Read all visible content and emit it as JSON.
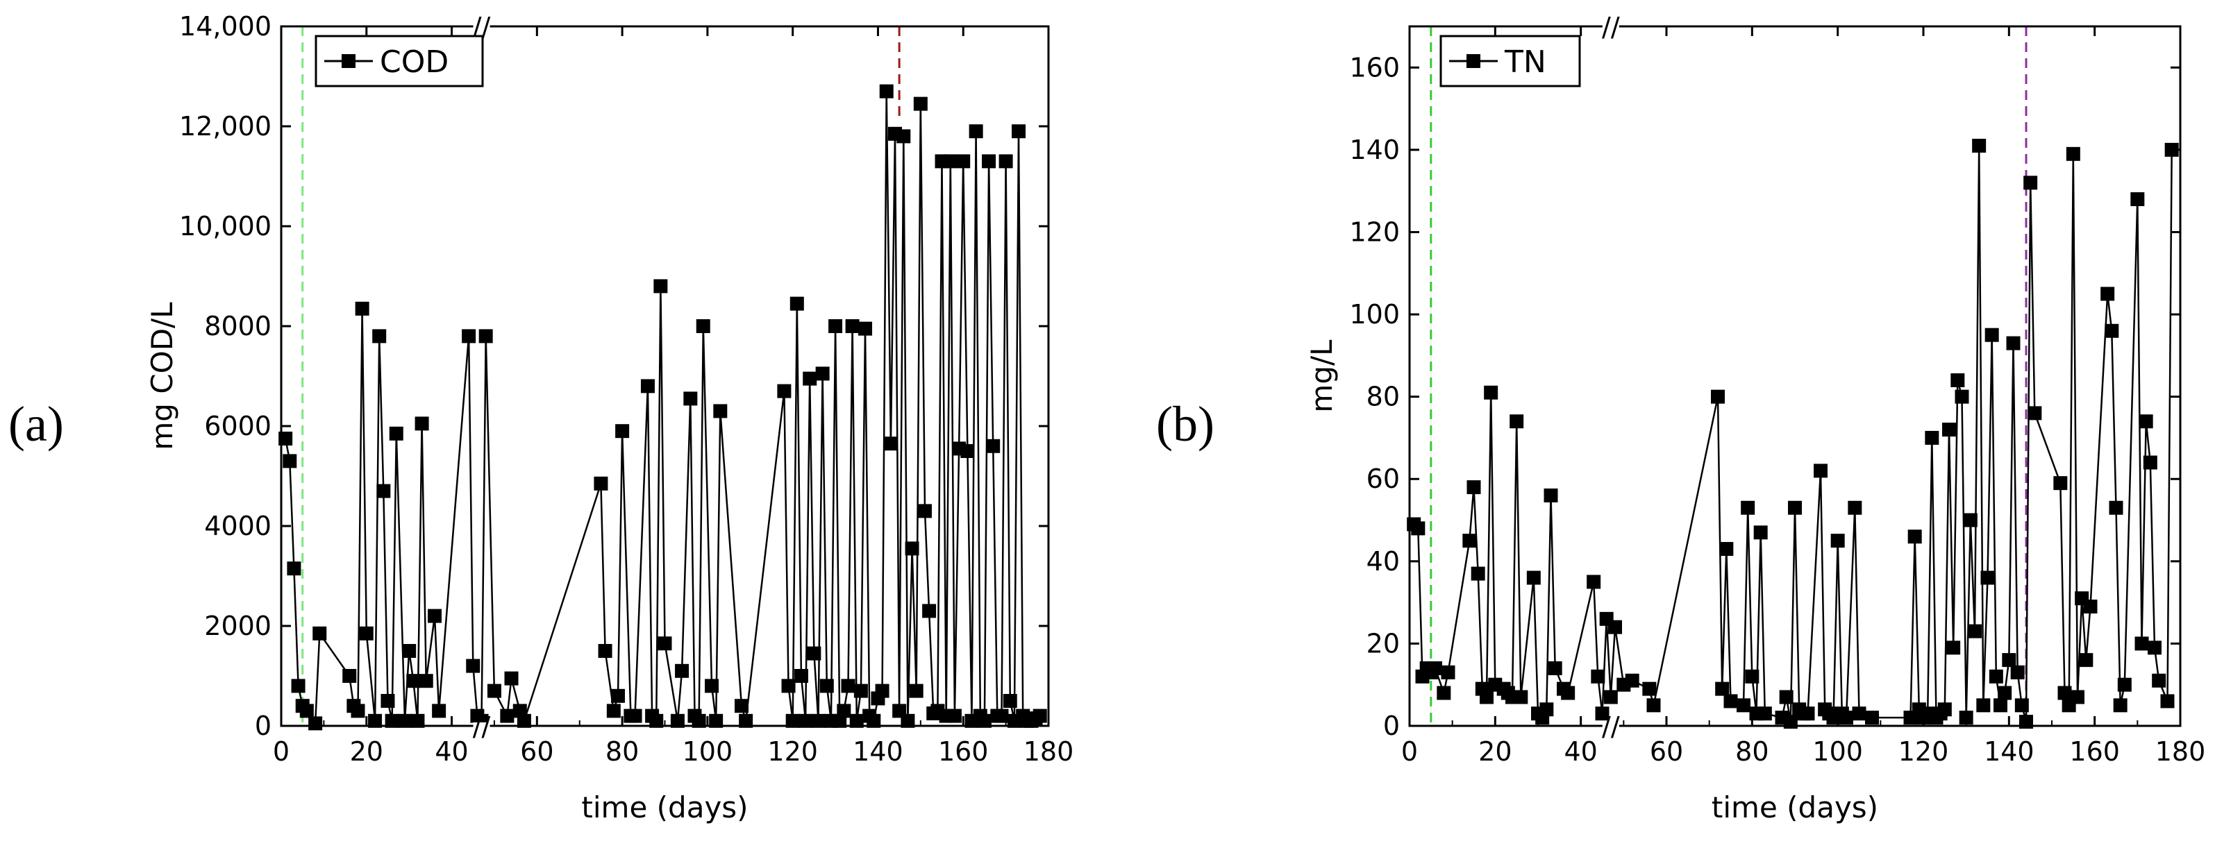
{
  "chart_data": [
    {
      "panel_label": "(a)",
      "type": "line",
      "marker": "square",
      "color": "#000000",
      "xlabel": "time (days)",
      "ylabel": "mg COD/L",
      "xlim": [
        0,
        180
      ],
      "ylim": [
        0,
        14000
      ],
      "xticks": [
        0,
        20,
        40,
        60,
        80,
        100,
        120,
        140,
        160,
        180
      ],
      "xtick_labels": [
        "0",
        "20",
        "40",
        "60",
        "80",
        "100",
        "120",
        "140",
        "160",
        "180"
      ],
      "yticks": [
        0,
        2000,
        4000,
        6000,
        8000,
        10000,
        12000,
        14000
      ],
      "ytick_labels": [
        "0",
        "2000",
        "4000",
        "6000",
        "8000",
        "10,000",
        "12,000",
        "14,000"
      ],
      "axis_break": {
        "x_at": 47,
        "label": "//"
      },
      "vlines": [
        {
          "x": 5,
          "color": "#7ee87e",
          "style": "dashed",
          "span": "full"
        },
        {
          "x": 145,
          "color": "#a01818",
          "style": "dashed",
          "span": "top"
        }
      ],
      "legend": {
        "position": "top-left",
        "entries": [
          "COD"
        ]
      },
      "series": [
        {
          "name": "COD",
          "x": [
            1,
            2,
            3,
            4,
            5,
            6,
            8,
            9,
            16,
            17,
            18,
            19,
            20,
            22,
            23,
            24,
            25,
            26,
            27,
            29,
            30,
            31,
            32,
            33,
            34,
            36,
            37,
            44,
            45,
            46,
            47,
            48,
            50,
            53,
            54,
            56,
            57,
            75,
            76,
            78,
            79,
            80,
            82,
            83,
            86,
            87,
            88,
            89,
            90,
            93,
            94,
            96,
            97,
            98,
            99,
            101,
            102,
            103,
            108,
            109,
            118,
            119,
            120,
            121,
            122,
            123,
            124,
            125,
            126,
            127,
            128,
            129,
            130,
            131,
            132,
            133,
            134,
            135,
            136,
            137,
            138,
            139,
            140,
            141,
            142,
            143,
            144,
            145,
            146,
            147,
            148,
            149,
            150,
            151,
            152,
            153,
            154,
            155,
            156,
            157,
            158,
            159,
            160,
            161,
            162,
            163,
            164,
            165,
            166,
            167,
            168,
            169,
            170,
            171,
            172,
            173,
            174,
            175,
            176,
            177,
            178
          ],
          "values": [
            5750,
            5300,
            3150,
            800,
            400,
            300,
            50,
            1850,
            1000,
            400,
            300,
            8350,
            1850,
            100,
            7800,
            4700,
            500,
            100,
            5850,
            100,
            1500,
            900,
            100,
            6050,
            900,
            2200,
            300,
            7800,
            1200,
            200,
            100,
            7800,
            700,
            200,
            950,
            300,
            100,
            4850,
            1500,
            300,
            600,
            5900,
            200,
            200,
            6800,
            200,
            100,
            8800,
            1650,
            100,
            1100,
            6550,
            200,
            100,
            8000,
            800,
            100,
            6300,
            400,
            100,
            6700,
            800,
            100,
            8450,
            1000,
            100,
            6950,
            1450,
            100,
            7050,
            800,
            100,
            8000,
            100,
            300,
            800,
            8000,
            100,
            700,
            7950,
            200,
            100,
            550,
            700,
            12700,
            5650,
            11850,
            300,
            11800,
            100,
            3550,
            700,
            12450,
            4300,
            2300,
            250,
            300,
            11300,
            200,
            11300,
            200,
            5550,
            11300,
            5500,
            100,
            11900,
            200,
            100,
            11300,
            5600,
            200,
            200,
            11300,
            500,
            100,
            11900,
            200,
            100,
            100,
            150,
            200
          ]
        }
      ]
    },
    {
      "panel_label": "(b)",
      "type": "line",
      "marker": "square",
      "color": "#000000",
      "xlabel": "time (days)",
      "ylabel": "mg/L",
      "xlim": [
        0,
        180
      ],
      "ylim": [
        0,
        170
      ],
      "xticks": [
        0,
        20,
        40,
        60,
        80,
        100,
        120,
        140,
        160,
        180
      ],
      "xtick_labels": [
        "0",
        "20",
        "40",
        "60",
        "80",
        "100",
        "120",
        "140",
        "160",
        "180"
      ],
      "yticks": [
        0,
        20,
        40,
        60,
        80,
        100,
        120,
        140,
        160
      ],
      "ytick_labels": [
        "0",
        "20",
        "40",
        "60",
        "80",
        "100",
        "120",
        "140",
        "160"
      ],
      "axis_break": {
        "x_at": 47,
        "label": "//"
      },
      "vlines": [
        {
          "x": 5,
          "color": "#33cc33",
          "style": "dashed",
          "span": "full"
        },
        {
          "x": 144,
          "color": "#8b2fa0",
          "style": "dashed",
          "span": "full"
        }
      ],
      "legend": {
        "position": "top-left",
        "entries": [
          "TN"
        ]
      },
      "series": [
        {
          "name": "TN",
          "x": [
            1,
            2,
            3,
            4,
            5,
            6,
            8,
            9,
            14,
            15,
            16,
            17,
            18,
            19,
            20,
            22,
            23,
            24,
            25,
            26,
            29,
            30,
            31,
            32,
            33,
            34,
            36,
            37,
            43,
            44,
            45,
            46,
            47,
            48,
            50,
            52,
            56,
            57,
            72,
            73,
            74,
            75,
            78,
            79,
            80,
            81,
            82,
            83,
            87,
            88,
            89,
            90,
            91,
            92,
            93,
            96,
            97,
            98,
            99,
            100,
            101,
            102,
            104,
            105,
            108,
            117,
            118,
            119,
            120,
            121,
            122,
            123,
            124,
            125,
            126,
            127,
            128,
            129,
            130,
            131,
            132,
            133,
            134,
            135,
            136,
            137,
            138,
            139,
            140,
            141,
            142,
            143,
            144,
            145,
            146,
            152,
            153,
            154,
            155,
            156,
            157,
            158,
            159,
            163,
            164,
            165,
            166,
            167,
            170,
            171,
            172,
            173,
            174,
            175,
            177,
            178
          ],
          "values": [
            49,
            48,
            12,
            14,
            13,
            14,
            8,
            13,
            45,
            58,
            37,
            9,
            7,
            81,
            10,
            9,
            8,
            7,
            74,
            7,
            36,
            3,
            2,
            4,
            56,
            14,
            9,
            8,
            35,
            12,
            3,
            26,
            7,
            24,
            10,
            11,
            9,
            5,
            80,
            9,
            43,
            6,
            5,
            53,
            12,
            3,
            47,
            3,
            2,
            7,
            1,
            53,
            4,
            3,
            3,
            62,
            4,
            3,
            2,
            45,
            3,
            2,
            53,
            3,
            2,
            2,
            46,
            4,
            2,
            3,
            70,
            2,
            3,
            4,
            72,
            19,
            84,
            80,
            2,
            50,
            23,
            141,
            5,
            36,
            95,
            12,
            5,
            8,
            16,
            93,
            13,
            5,
            1,
            132,
            76,
            59,
            8,
            5,
            139,
            7,
            31,
            16,
            29,
            105,
            96,
            53,
            5,
            10,
            128,
            20,
            74,
            64,
            19,
            11,
            6,
            140
          ]
        }
      ]
    }
  ]
}
